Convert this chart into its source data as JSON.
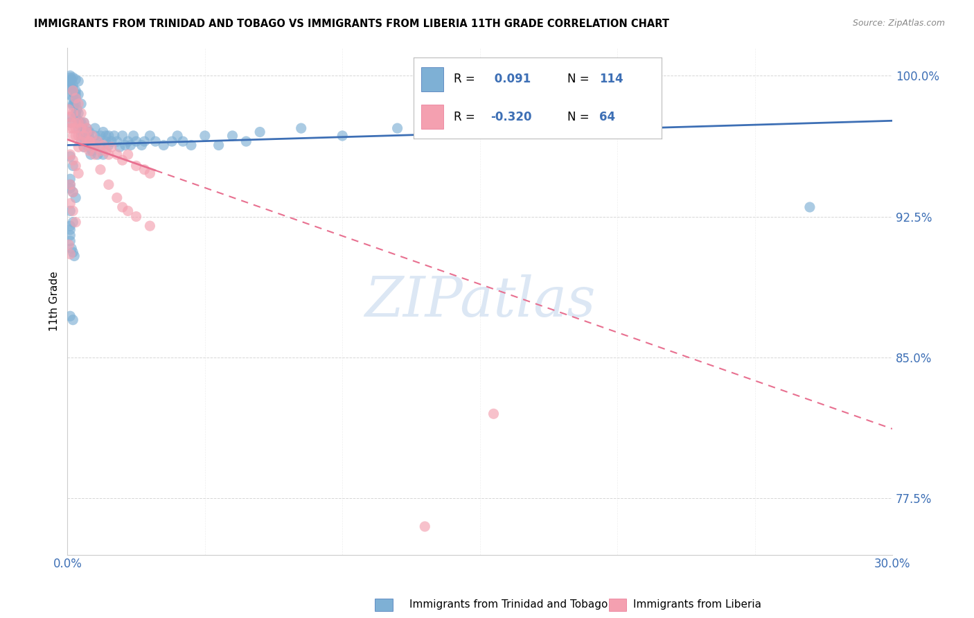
{
  "title": "IMMIGRANTS FROM TRINIDAD AND TOBAGO VS IMMIGRANTS FROM LIBERIA 11TH GRADE CORRELATION CHART",
  "source": "Source: ZipAtlas.com",
  "ylabel": "11th Grade",
  "ytick_labels": [
    "77.5%",
    "85.0%",
    "92.5%",
    "100.0%"
  ],
  "ytick_values": [
    0.775,
    0.85,
    0.925,
    1.0
  ],
  "xlim": [
    0.0,
    0.3
  ],
  "ylim": [
    0.745,
    1.015
  ],
  "blue_color": "#7EB0D5",
  "pink_color": "#F4A0B0",
  "blue_line_color": "#3D6FB5",
  "pink_line_color": "#E87090",
  "watermark_color": "#C5D8ED",
  "blue_trend_x": [
    0.0,
    0.3
  ],
  "blue_trend_y": [
    0.963,
    0.976
  ],
  "pink_trend_x": [
    0.0,
    0.3
  ],
  "pink_trend_y": [
    0.966,
    0.812
  ],
  "blue_scatter_x": [
    0.0005,
    0.0008,
    0.001,
    0.001,
    0.0015,
    0.002,
    0.002,
    0.002,
    0.0025,
    0.003,
    0.003,
    0.003,
    0.003,
    0.0035,
    0.004,
    0.004,
    0.004,
    0.004,
    0.0045,
    0.005,
    0.005,
    0.005,
    0.005,
    0.0055,
    0.006,
    0.006,
    0.006,
    0.0065,
    0.007,
    0.007,
    0.007,
    0.0075,
    0.008,
    0.008,
    0.008,
    0.0085,
    0.009,
    0.009,
    0.0095,
    0.01,
    0.01,
    0.01,
    0.011,
    0.011,
    0.012,
    0.012,
    0.013,
    0.013,
    0.014,
    0.014,
    0.015,
    0.015,
    0.016,
    0.017,
    0.018,
    0.019,
    0.02,
    0.021,
    0.022,
    0.023,
    0.024,
    0.025,
    0.027,
    0.028,
    0.03,
    0.032,
    0.035,
    0.038,
    0.04,
    0.042,
    0.045,
    0.05,
    0.055,
    0.06,
    0.065,
    0.07,
    0.085,
    0.1,
    0.12,
    0.27,
    0.001,
    0.002,
    0.003,
    0.004,
    0.002,
    0.003,
    0.004,
    0.005,
    0.001,
    0.002,
    0.003,
    0.001,
    0.002,
    0.001,
    0.002,
    0.001,
    0.001,
    0.002,
    0.003,
    0.001,
    0.001,
    0.0005,
    0.001,
    0.002,
    0.003,
    0.001,
    0.002,
    0.001,
    0.001,
    0.001,
    0.001,
    0.0015,
    0.002,
    0.0025
  ],
  "blue_scatter_y": [
    0.99,
    0.997,
    0.999,
    0.995,
    0.998,
    0.993,
    0.988,
    0.984,
    0.985,
    0.99,
    0.985,
    0.98,
    0.978,
    0.982,
    0.976,
    0.972,
    0.98,
    0.975,
    0.974,
    0.97,
    0.975,
    0.965,
    0.968,
    0.972,
    0.968,
    0.975,
    0.962,
    0.965,
    0.972,
    0.968,
    0.963,
    0.97,
    0.967,
    0.963,
    0.97,
    0.958,
    0.965,
    0.96,
    0.962,
    0.968,
    0.963,
    0.972,
    0.965,
    0.958,
    0.968,
    0.963,
    0.97,
    0.958,
    0.968,
    0.965,
    0.963,
    0.968,
    0.965,
    0.968,
    0.965,
    0.962,
    0.968,
    0.963,
    0.965,
    0.963,
    0.968,
    0.965,
    0.963,
    0.965,
    0.968,
    0.965,
    0.963,
    0.965,
    0.968,
    0.965,
    0.963,
    0.968,
    0.963,
    0.968,
    0.965,
    0.97,
    0.972,
    0.968,
    0.972,
    0.93,
    1.0,
    0.999,
    0.998,
    0.997,
    0.995,
    0.992,
    0.99,
    0.985,
    0.94,
    0.938,
    0.935,
    0.928,
    0.922,
    0.957,
    0.952,
    0.945,
    0.942,
    0.985,
    0.98,
    0.978,
    0.975,
    0.997,
    0.994,
    0.991,
    0.988,
    0.872,
    0.87,
    0.92,
    0.918,
    0.915,
    0.912,
    0.908,
    0.906,
    0.904
  ],
  "pink_scatter_x": [
    0.0005,
    0.001,
    0.001,
    0.0015,
    0.002,
    0.002,
    0.002,
    0.003,
    0.003,
    0.003,
    0.004,
    0.004,
    0.004,
    0.005,
    0.005,
    0.006,
    0.006,
    0.007,
    0.007,
    0.008,
    0.008,
    0.009,
    0.01,
    0.011,
    0.012,
    0.013,
    0.014,
    0.015,
    0.016,
    0.018,
    0.02,
    0.022,
    0.025,
    0.028,
    0.03,
    0.002,
    0.003,
    0.004,
    0.005,
    0.006,
    0.007,
    0.008,
    0.009,
    0.01,
    0.012,
    0.015,
    0.018,
    0.02,
    0.022,
    0.025,
    0.03,
    0.001,
    0.002,
    0.001,
    0.002,
    0.003,
    0.001,
    0.002,
    0.003,
    0.004,
    0.0005,
    0.001,
    0.155,
    0.13
  ],
  "pink_scatter_y": [
    0.982,
    0.978,
    0.972,
    0.975,
    0.972,
    0.968,
    0.98,
    0.975,
    0.968,
    0.972,
    0.968,
    0.975,
    0.962,
    0.965,
    0.972,
    0.968,
    0.962,
    0.965,
    0.972,
    0.96,
    0.965,
    0.968,
    0.963,
    0.965,
    0.96,
    0.963,
    0.96,
    0.958,
    0.962,
    0.958,
    0.955,
    0.958,
    0.952,
    0.95,
    0.948,
    0.992,
    0.988,
    0.985,
    0.98,
    0.975,
    0.97,
    0.965,
    0.962,
    0.958,
    0.95,
    0.942,
    0.935,
    0.93,
    0.928,
    0.925,
    0.92,
    0.942,
    0.938,
    0.932,
    0.928,
    0.922,
    0.958,
    0.955,
    0.952,
    0.948,
    0.91,
    0.905,
    0.82,
    0.76
  ]
}
